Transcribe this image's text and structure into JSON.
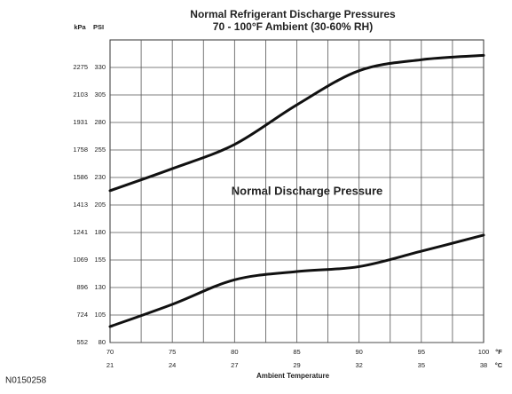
{
  "chart_data": {
    "type": "line",
    "title": "Normal Refrigerant Discharge Pressures",
    "subtitle": "70 - 100°F Ambient (30-60% RH)",
    "annotation": "Normal Discharge Pressure",
    "x_label": "Ambient Temperature",
    "x_unit": "°F",
    "x2_unit": "°C",
    "y_unit": "PSI",
    "y2_unit": "kPa",
    "x": [
      70,
      75,
      80,
      85,
      90,
      95,
      100
    ],
    "series": [
      {
        "name": null,
        "color": "#111111",
        "values": [
          218,
          238,
          260,
          296,
          327,
          337,
          341
        ]
      },
      {
        "name": null,
        "color": "#111111",
        "values": [
          94.5,
          114.7,
          137,
          144.5,
          149,
          163,
          177.6
        ]
      }
    ],
    "xlim": [
      70,
      100
    ],
    "xticks": [
      70,
      75,
      80,
      85,
      90,
      95,
      100
    ],
    "x2ticks": [
      21,
      24,
      27,
      29,
      32,
      35,
      38
    ],
    "xgrid_step": 2.5,
    "ylim": [
      80,
      355
    ],
    "yticks": [
      80,
      105,
      130,
      155,
      180,
      205,
      230,
      255,
      280,
      305,
      330
    ],
    "y2lim": [
      552,
      2447
    ],
    "y2ticks": [
      552,
      724,
      896,
      1069,
      1241,
      1413,
      1586,
      1758,
      1931,
      2103,
      2275
    ],
    "grid": true,
    "footer": "N0150258"
  }
}
